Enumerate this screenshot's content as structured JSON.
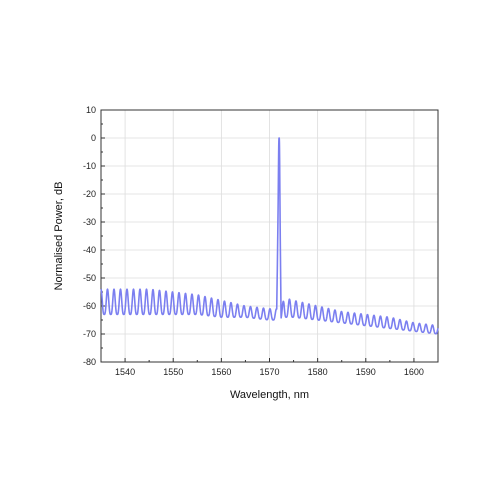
{
  "chart_data": {
    "type": "line",
    "title": "",
    "xlabel": "Wavelength, nm",
    "ylabel": "Normalised Power, dB",
    "xlim": [
      1535,
      1605
    ],
    "ylim": [
      -80,
      10
    ],
    "x_ticks": [
      1540,
      1550,
      1560,
      1570,
      1580,
      1590,
      1600
    ],
    "y_ticks": [
      -80,
      -70,
      -60,
      -50,
      -40,
      -30,
      -20,
      -10,
      0,
      10
    ],
    "x_tick_labels": [
      "1540",
      "1550",
      "1560",
      "1570",
      "1580",
      "1590",
      "1600"
    ],
    "y_tick_labels": [
      "-80",
      "-70",
      "-60",
      "-50",
      "-40",
      "-30",
      "-20",
      "-10",
      "0",
      "10"
    ],
    "grid": true,
    "legend": "none",
    "line_color": "#7b7ff0",
    "series": [
      {
        "x": [
          1535,
          1540,
          1545,
          1550,
          1555,
          1560,
          1565,
          1570,
          1571.5,
          1572,
          1572.4,
          1573,
          1575,
          1580,
          1585,
          1590,
          1595,
          1600,
          1605
        ],
        "values": [
          -54,
          -54,
          -54,
          -55,
          -56,
          -58,
          -60,
          -61,
          -61,
          0,
          -62,
          -62,
          -62,
          -63,
          -64,
          -65,
          -66,
          -68,
          -69
        ],
        "envelope_upper": [
          -54,
          -54,
          -54,
          -55,
          -56,
          -58,
          -60,
          -61,
          -61,
          0,
          -62,
          -57,
          -58,
          -60,
          -62,
          -63,
          -64,
          -66,
          -67
        ],
        "envelope_lower": [
          -63,
          -63,
          -63,
          -63,
          -63,
          -64,
          -64,
          -65,
          -65,
          0,
          -65,
          -64,
          -64,
          -65,
          -66,
          -67,
          -68,
          -69,
          -70
        ],
        "fringe_period_nm": 1.35
      }
    ]
  }
}
